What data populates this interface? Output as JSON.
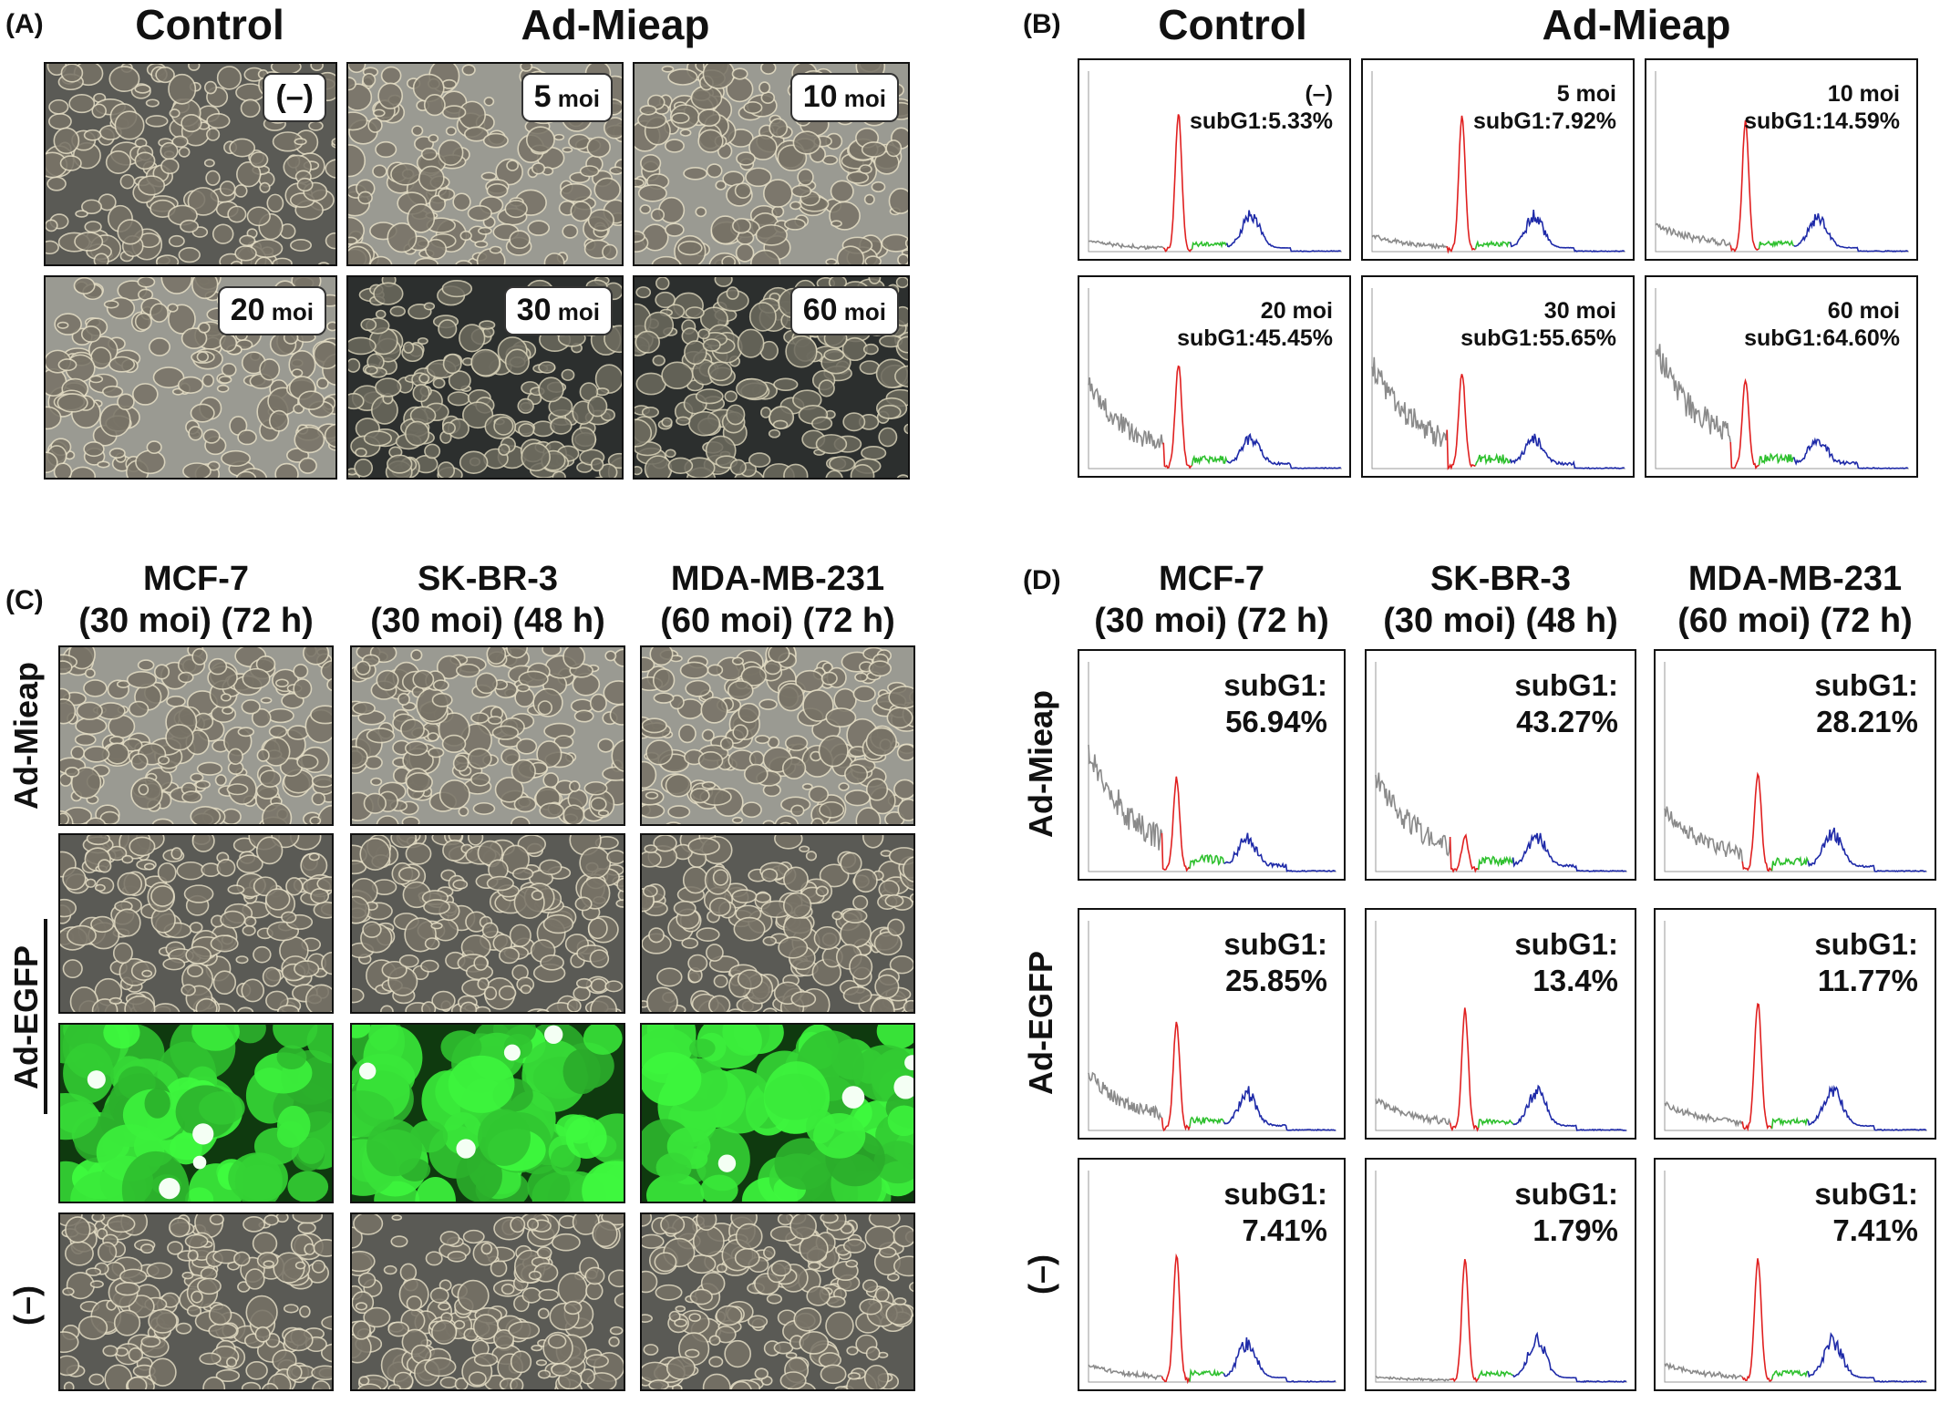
{
  "panels": {
    "A": {
      "label": "(A)",
      "header_control": "Control",
      "header_treat": "Ad-Mieap",
      "tiles": [
        {
          "num": "(–)",
          "unit": "",
          "tone": "phase"
        },
        {
          "num": "5",
          "unit": " moi",
          "tone": "light"
        },
        {
          "num": "10",
          "unit": " moi",
          "tone": "light"
        },
        {
          "num": "20",
          "unit": " moi",
          "tone": "light"
        },
        {
          "num": "30",
          "unit": " moi",
          "tone": "dark"
        },
        {
          "num": "60",
          "unit": " moi",
          "tone": "dark"
        }
      ]
    },
    "B": {
      "label": "(B)",
      "header_control": "Control",
      "header_treat": "Ad-Mieap",
      "hists": [
        {
          "dose": "(–)",
          "value": "subG1:5.33%"
        },
        {
          "dose": "5 moi",
          "value": "subG1:7.92%"
        },
        {
          "dose": "10 moi",
          "value": "subG1:14.59%"
        },
        {
          "dose": "20 moi",
          "value": "subG1:45.45%"
        },
        {
          "dose": "30 moi",
          "value": "subG1:55.65%"
        },
        {
          "dose": "60 moi",
          "value": "subG1:64.60%"
        }
      ]
    },
    "C": {
      "label": "(C)",
      "columns": [
        {
          "name": "MCF-7",
          "cond": "(30 moi) (72 h)"
        },
        {
          "name": "SK-BR-3",
          "cond": "(30 moi) (48 h)"
        },
        {
          "name": "MDA-MB-231",
          "cond": "(60 moi) (72 h)"
        }
      ],
      "rows": [
        "Ad-Mieap",
        "Ad-EGFP",
        "(–)"
      ]
    },
    "D": {
      "label": "(D)",
      "columns": [
        {
          "name": "MCF-7",
          "cond": "(30 moi) (72 h)"
        },
        {
          "name": "SK-BR-3",
          "cond": "(30 moi) (48 h)"
        },
        {
          "name": "MDA-MB-231",
          "cond": "(60 moi) (72 h)"
        }
      ],
      "rows": [
        "Ad-Mieap",
        "Ad-EGFP",
        "(–)"
      ],
      "hists": [
        {
          "title": "subG1:",
          "value": "56.94%"
        },
        {
          "title": "subG1:",
          "value": "43.27%"
        },
        {
          "title": "subG1:",
          "value": "28.21%"
        },
        {
          "title": "subG1:",
          "value": "25.85%"
        },
        {
          "title": "subG1:",
          "value": "13.4%"
        },
        {
          "title": "subG1:",
          "value": "11.77%"
        },
        {
          "title": "subG1:",
          "value": "7.41%"
        },
        {
          "title": "subG1:",
          "value": "1.79%"
        },
        {
          "title": "subG1:",
          "value": "7.41%"
        }
      ]
    }
  },
  "colors": {
    "subg1_gray": "#8a8a8a",
    "g1_red": "#e02020",
    "s_green": "#2ec02e",
    "g2m_blue": "#1e2aa8",
    "gfp": "#3ee03e"
  }
}
